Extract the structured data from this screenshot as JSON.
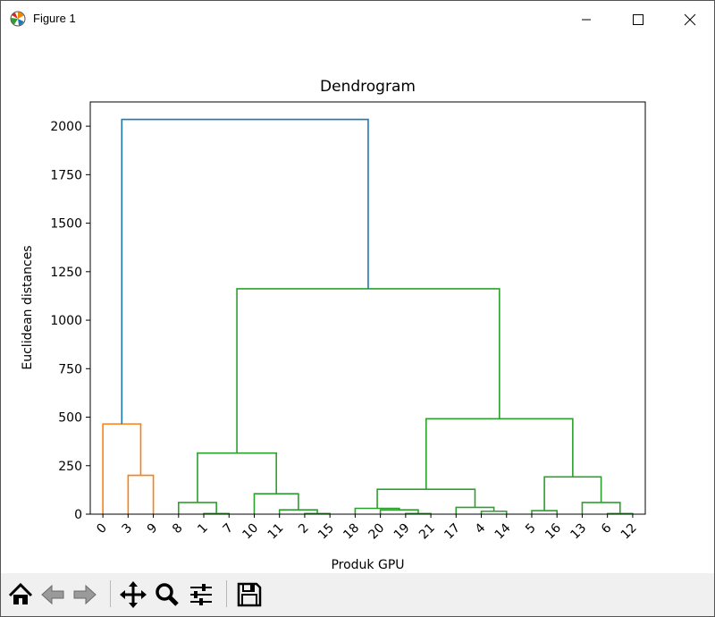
{
  "window": {
    "title": "Figure 1",
    "controls": [
      "minimize-icon",
      "maximize-icon",
      "close-icon"
    ]
  },
  "toolbar": {
    "buttons": [
      "home-icon",
      "back-icon",
      "forward-icon",
      "pan-icon",
      "zoom-icon",
      "configure-subplots-icon",
      "save-icon"
    ]
  },
  "colors": {
    "root": "#1f77b4",
    "cluster1": "#ff7f0e",
    "cluster2": "#2ca02c"
  },
  "chart_data": {
    "type": "dendrogram",
    "title": "Dendrogram",
    "xlabel": "Produk GPU",
    "ylabel": "Euclidean distances",
    "ylim": [
      0,
      2125
    ],
    "yticks": [
      0,
      250,
      500,
      750,
      1000,
      1250,
      1500,
      1750,
      2000
    ],
    "leaves": [
      "0",
      "3",
      "9",
      "8",
      "1",
      "7",
      "10",
      "11",
      "2",
      "15",
      "18",
      "20",
      "19",
      "21",
      "17",
      "4",
      "14",
      "5",
      "16",
      "13",
      "6",
      "12"
    ],
    "links": [
      {
        "left": 0,
        "right": 1.5,
        "height": 465,
        "color": "cluster1",
        "left_height": 0,
        "right_height": 200
      },
      {
        "left": 1,
        "right": 2,
        "height": 200,
        "color": "cluster1",
        "left_height": 0,
        "right_height": 0
      },
      {
        "left": 4,
        "right": 5,
        "height": 3,
        "color": "cluster2",
        "left_height": 0,
        "right_height": 0
      },
      {
        "left": 3,
        "right": 4.5,
        "height": 60,
        "color": "cluster2",
        "left_height": 0,
        "right_height": 3
      },
      {
        "left": 8,
        "right": 9,
        "height": 3,
        "color": "cluster2",
        "left_height": 0,
        "right_height": 0
      },
      {
        "left": 7,
        "right": 8.5,
        "height": 22,
        "color": "cluster2",
        "left_height": 0,
        "right_height": 3
      },
      {
        "left": 6,
        "right": 7.75,
        "height": 105,
        "color": "cluster2",
        "left_height": 0,
        "right_height": 22
      },
      {
        "left": 3.75,
        "right": 6.875,
        "height": 315,
        "color": "cluster2",
        "left_height": 60,
        "right_height": 105
      },
      {
        "left": 12,
        "right": 13,
        "height": 3,
        "color": "cluster2",
        "left_height": 0,
        "right_height": 0
      },
      {
        "left": 11,
        "right": 12.5,
        "height": 22,
        "color": "cluster2",
        "left_height": 0,
        "right_height": 3
      },
      {
        "left": 10,
        "right": 11.75,
        "height": 30,
        "color": "cluster2",
        "left_height": 0,
        "right_height": 22
      },
      {
        "left": 15,
        "right": 16,
        "height": 15,
        "color": "cluster2",
        "left_height": 0,
        "right_height": 0
      },
      {
        "left": 14,
        "right": 15.5,
        "height": 35,
        "color": "cluster2",
        "left_height": 0,
        "right_height": 15
      },
      {
        "left": 10.875,
        "right": 14.75,
        "height": 128,
        "color": "cluster2",
        "left_height": 30,
        "right_height": 35
      },
      {
        "left": 17,
        "right": 18,
        "height": 18,
        "color": "cluster2",
        "left_height": 0,
        "right_height": 0
      },
      {
        "left": 20,
        "right": 21,
        "height": 3,
        "color": "cluster2",
        "left_height": 0,
        "right_height": 0
      },
      {
        "left": 19,
        "right": 20.5,
        "height": 60,
        "color": "cluster2",
        "left_height": 0,
        "right_height": 3
      },
      {
        "left": 17.5,
        "right": 19.75,
        "height": 192,
        "color": "cluster2",
        "left_height": 18,
        "right_height": 60
      },
      {
        "left": 12.8125,
        "right": 18.625,
        "height": 492,
        "color": "cluster2",
        "left_height": 128,
        "right_height": 192
      },
      {
        "left": 5.3125,
        "right": 15.71875,
        "height": 1162,
        "color": "cluster2",
        "left_height": 315,
        "right_height": 492
      },
      {
        "left": 0.75,
        "right": 10.515625,
        "height": 2035,
        "color": "root",
        "left_height": 465,
        "right_height": 1162
      }
    ]
  }
}
